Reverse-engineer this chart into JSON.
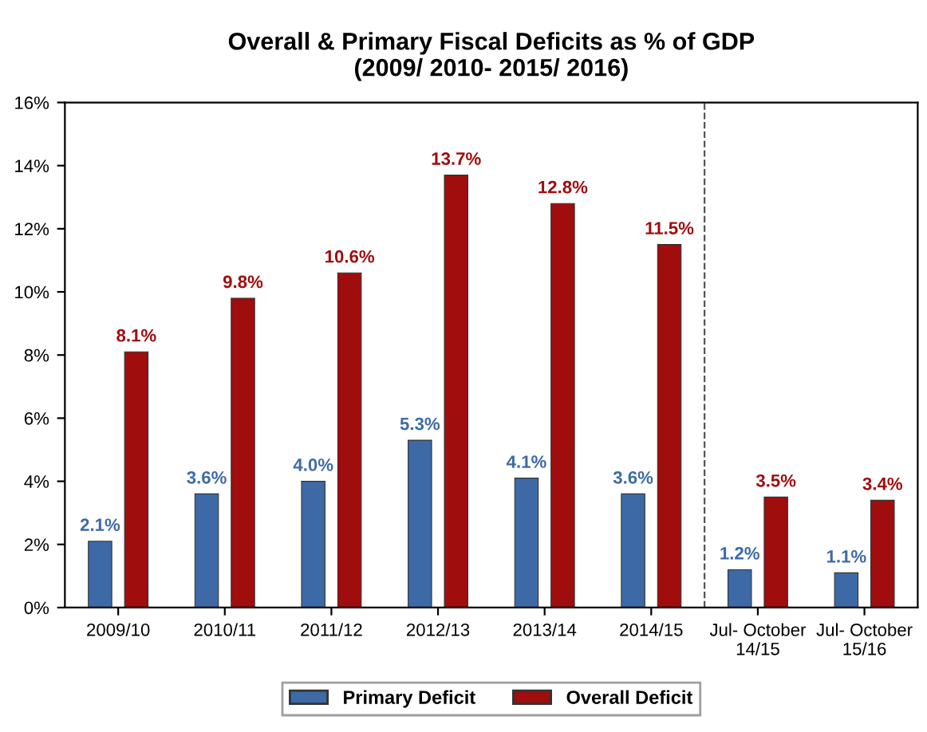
{
  "chart_data": {
    "type": "bar",
    "title": "Overall & Primary Fiscal Deficits as % of GDP\n(2009/ 2010- 2015/ 2016)",
    "categories": [
      "2009/10",
      "2010/11",
      "2011/12",
      "2012/13",
      "2013/14",
      "2014/15",
      "Jul- October\n14/15",
      "Jul- October\n15/16"
    ],
    "series": [
      {
        "name": "Primary Deficit",
        "color": "#3d6aa6",
        "values": [
          2.1,
          3.6,
          4.0,
          5.3,
          4.1,
          3.6,
          1.2,
          1.1
        ],
        "value_labels": [
          "2.1%",
          "3.6%",
          "4.0%",
          "5.3%",
          "4.1%",
          "3.6%",
          "1.2%",
          "1.1%"
        ]
      },
      {
        "name": "Overall Deficit",
        "color": "#a00d0d",
        "values": [
          8.1,
          9.8,
          10.6,
          13.7,
          12.8,
          11.5,
          3.5,
          3.4
        ],
        "value_labels": [
          "8.1%",
          "9.8%",
          "10.6%",
          "13.7%",
          "12.8%",
          "11.5%",
          "3.5%",
          "3.4%"
        ]
      }
    ],
    "ylim": [
      0,
      16
    ],
    "yticks": [
      {
        "value": 0,
        "label": "0%"
      },
      {
        "value": 2,
        "label": "2%"
      },
      {
        "value": 4,
        "label": "4%"
      },
      {
        "value": 6,
        "label": "6%"
      },
      {
        "value": 8,
        "label": "8%"
      },
      {
        "value": 10,
        "label": "10%"
      },
      {
        "value": 12,
        "label": "12%"
      },
      {
        "value": 14,
        "label": "14%"
      },
      {
        "value": 16,
        "label": "16%"
      }
    ],
    "grid": false,
    "legend": "bottom"
  }
}
